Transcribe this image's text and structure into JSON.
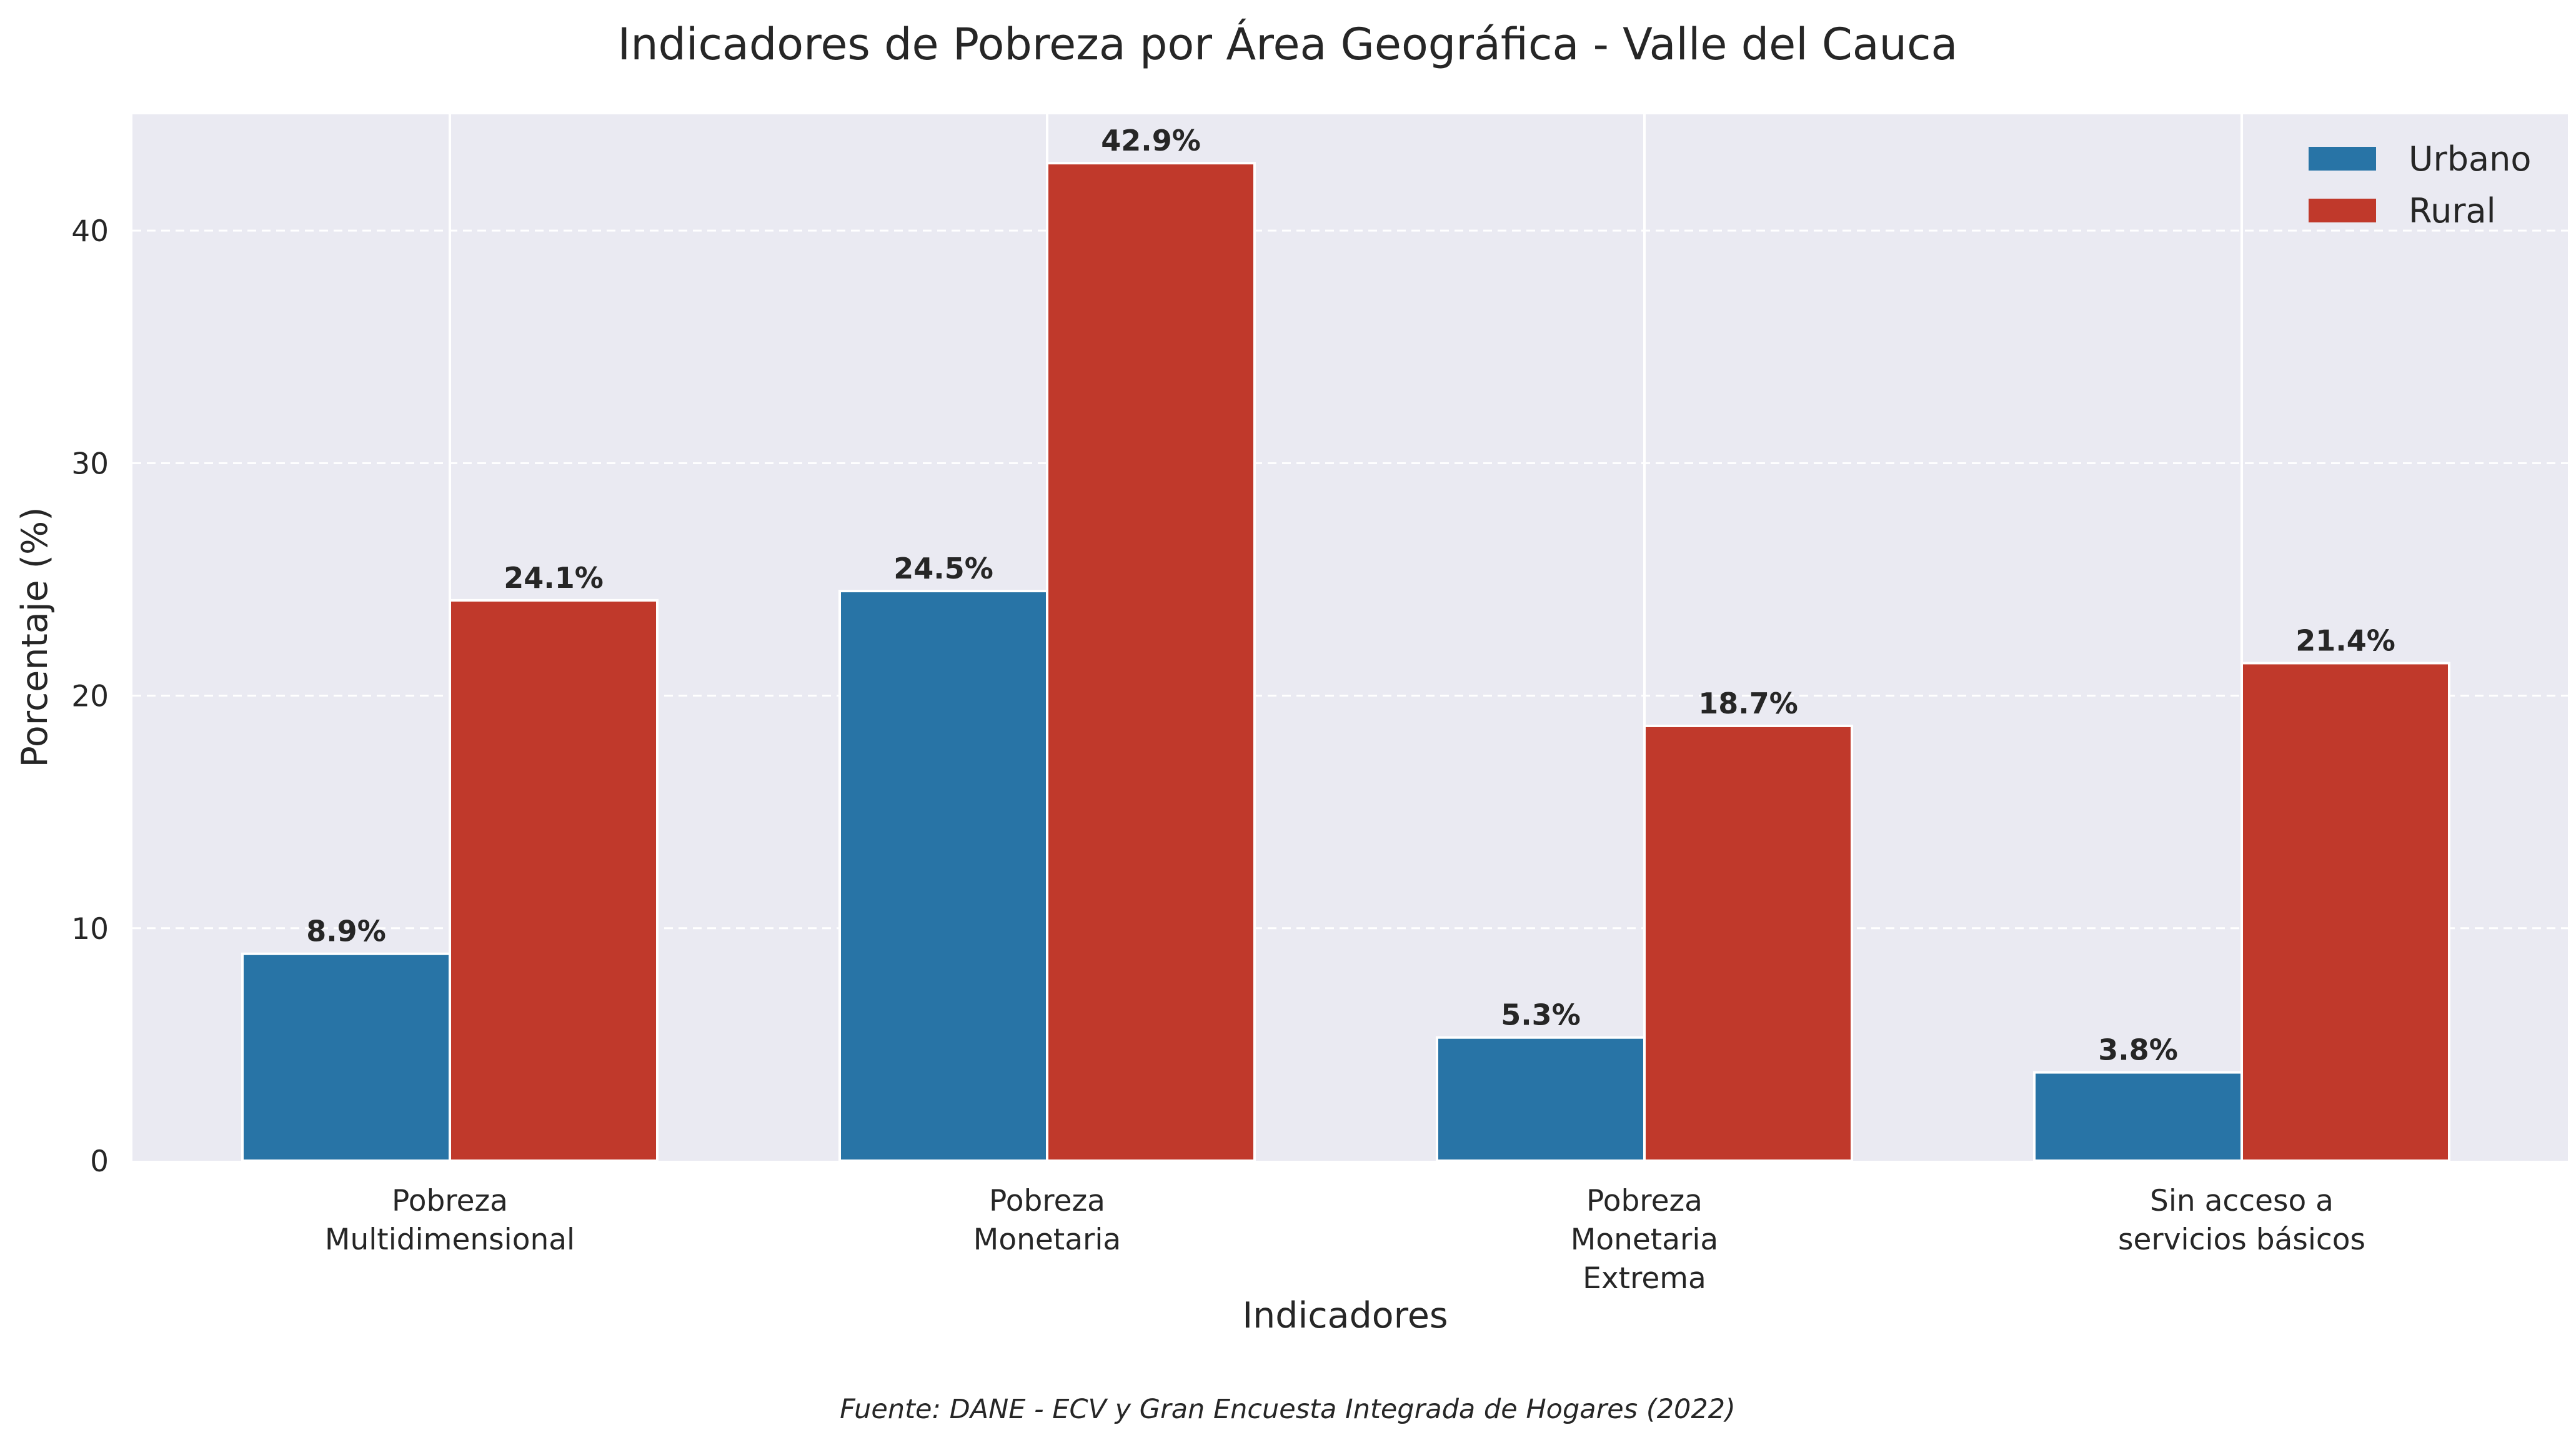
{
  "chart_data": {
    "type": "bar",
    "title": "Indicadores de Pobreza por Área Geográfica - Valle del Cauca",
    "xlabel": "Indicadores",
    "ylabel": "Porcentaje (%)",
    "source": "Fuente: DANE - ECV y Gran Encuesta Integrada de Hogares (2022)",
    "categories": [
      [
        "Pobreza",
        "Multidimensional"
      ],
      [
        "Pobreza",
        "Monetaria"
      ],
      [
        "Pobreza",
        "Monetaria",
        "Extrema"
      ],
      [
        "Sin acceso a",
        "servicios básicos"
      ]
    ],
    "series": [
      {
        "name": "Urbano",
        "color": "#2874a6",
        "values": [
          8.9,
          24.5,
          5.3,
          3.8
        ],
        "labels": [
          "8.9%",
          "24.5%",
          "5.3%",
          "3.8%"
        ]
      },
      {
        "name": "Rural",
        "color": "#c0392b",
        "values": [
          24.1,
          42.9,
          18.7,
          21.4
        ],
        "labels": [
          "24.1%",
          "42.9%",
          "18.7%",
          "21.4%"
        ]
      }
    ],
    "ylim": [
      0,
      45
    ],
    "yticks": [
      0,
      10,
      20,
      30,
      40
    ],
    "grid": true,
    "legend_position": "top-right",
    "style": {
      "plot_background": "#eaeaf2",
      "grid_color": "#ffffff",
      "text_color": "#262626"
    }
  }
}
